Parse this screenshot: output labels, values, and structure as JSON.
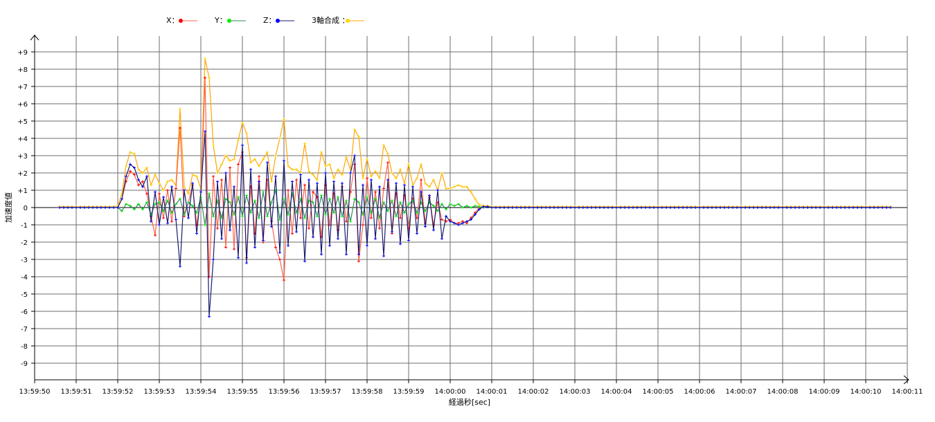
{
  "chart_data": {
    "type": "line",
    "title": "",
    "xlabel": "経過秒[sec]",
    "ylabel": "加速度値",
    "ylim": [
      -10,
      10
    ],
    "xlim_seconds": [
      0,
      21
    ],
    "x_ticks": [
      "13:59:50",
      "13:59:51",
      "13:59:52",
      "13:59:53",
      "13:59:54",
      "13:59:55",
      "13:59:56",
      "13:59:57",
      "13:59:58",
      "13:59:59",
      "14:00:00",
      "14:00:01",
      "14:00:02",
      "14:00:03",
      "14:00:04",
      "14:00:05",
      "14:00:06",
      "14:00:07",
      "14:00:08",
      "14:00:09",
      "14:00:10",
      "14:00:11"
    ],
    "y_ticks": [
      "+9",
      "+8",
      "+7",
      "+6",
      "+5",
      "+4",
      "+3",
      "+2",
      "+1",
      "0",
      "-1",
      "-2",
      "-3",
      "-4",
      "-5",
      "-6",
      "-7",
      "-8",
      "-9"
    ],
    "y_tick_values": [
      9,
      8,
      7,
      6,
      5,
      4,
      3,
      2,
      1,
      0,
      -1,
      -2,
      -3,
      -4,
      -5,
      -6,
      -7,
      -8,
      -9
    ],
    "grid": true,
    "legend_position": "top-center",
    "x_unit_note": "x values are seconds after 13:59:50",
    "active_start": 2.0,
    "active_step": 0.1,
    "quiet_ranges": [
      [
        0.6,
        2.0
      ],
      [
        11.0,
        20.6
      ]
    ],
    "series": [
      {
        "name": "X",
        "label": "X：",
        "line_color": "#ff6347",
        "marker_color": "#ff0000",
        "quiet_value": 0.0,
        "values": [
          0,
          0.5,
          1.5,
          2.1,
          1.9,
          1.3,
          1.5,
          0.8,
          -0.5,
          -1.6,
          0.8,
          -0.6,
          1.0,
          -0.8,
          1.1,
          4.6,
          -0.5,
          0.3,
          1.3,
          -1.0,
          0.6,
          7.5,
          -4.0,
          1.8,
          -1.2,
          1.6,
          -2.3,
          2.3,
          -2.4,
          2.5,
          3.2,
          -2.9,
          1.2,
          -1.5,
          1.8,
          -2.0,
          1.6,
          -0.8,
          -2.3,
          -3.0,
          -4.2,
          1.0,
          -1.5,
          1.6,
          -0.6,
          1.3,
          -1.2,
          0.9,
          0.6,
          -1.7,
          1.3,
          -1.0,
          0.8,
          -1.3,
          1.2,
          -0.8,
          0.9,
          2.5,
          -3.1,
          -1.0,
          1.7,
          -0.6,
          0.9,
          -1.2,
          1.1,
          2.6,
          -1.5,
          0.8,
          -0.6,
          0.7,
          -1.2,
          0.5,
          -0.6,
          1.6,
          -0.9,
          0.6,
          -1.0,
          0.3,
          -0.7,
          -0.8,
          -0.7,
          -0.9,
          -0.9,
          -0.8,
          -0.9,
          -0.6,
          -0.3,
          0.0,
          0.05,
          0.05,
          0.0
        ]
      },
      {
        "name": "Y",
        "label": "Y：",
        "line_color": "#2e8b57",
        "marker_color": "#00ee00",
        "quiet_value": 0.0,
        "values": [
          0,
          -0.2,
          0.2,
          0.1,
          -0.1,
          0.2,
          -0.1,
          0.3,
          -0.4,
          0.2,
          0.3,
          -0.2,
          0.4,
          -0.3,
          0.2,
          0.5,
          -0.4,
          0.3,
          0.1,
          -0.3,
          0.6,
          -1.0,
          0.8,
          -0.5,
          0.4,
          -0.6,
          0.5,
          0.3,
          -0.4,
          0.6,
          -0.5,
          0.7,
          -0.3,
          0.4,
          -0.6,
          0.9,
          -0.5,
          0.3,
          1.0,
          -0.7,
          0.5,
          -0.4,
          0.8,
          -0.3,
          0.5,
          -0.6,
          0.4,
          0.3,
          -0.5,
          0.7,
          -0.4,
          0.5,
          -0.3,
          0.6,
          -0.5,
          0.4,
          -0.8,
          0.5,
          0.3,
          -0.4,
          0.6,
          -0.3,
          0.5,
          -0.6,
          0.3,
          -0.2,
          0.4,
          -0.5,
          0.3,
          -0.3,
          0.2,
          0.4,
          -0.3,
          0.3,
          -0.2,
          0.3,
          0.1,
          -0.2,
          0.2,
          -0.1,
          0.2,
          0.1,
          0.2,
          0.0,
          0.1,
          0.0,
          0.1,
          0.05,
          0.0,
          0.05,
          0.0
        ]
      },
      {
        "name": "Z",
        "label": "Z：",
        "line_color": "#191970",
        "marker_color": "#0000ff",
        "quiet_value": 0.0,
        "values": [
          0,
          0.5,
          1.8,
          2.5,
          2.3,
          1.6,
          1.2,
          1.8,
          -0.8,
          0.9,
          -1.0,
          0.6,
          -0.9,
          1.2,
          -0.7,
          -3.4,
          1.0,
          -0.6,
          1.4,
          -1.5,
          0.9,
          4.4,
          -6.3,
          -3.0,
          1.5,
          -1.8,
          2.0,
          -1.3,
          1.2,
          -2.9,
          3.6,
          -3.2,
          2.2,
          -2.3,
          1.5,
          -1.9,
          2.6,
          -1.1,
          1.8,
          -2.6,
          2.7,
          -2.2,
          1.5,
          -1.4,
          1.9,
          -3.1,
          1.6,
          -1.7,
          1.4,
          -2.7,
          2.0,
          -2.2,
          1.5,
          -1.8,
          1.4,
          -2.7,
          2.0,
          3.0,
          -2.7,
          1.3,
          -2.2,
          1.6,
          -1.8,
          1.2,
          -2.8,
          1.6,
          -1.4,
          1.4,
          -2.1,
          1.3,
          -1.9,
          1.2,
          -1.5,
          0.9,
          -1.1,
          0.7,
          -1.3,
          1.0,
          -1.8,
          -0.5,
          -0.8,
          -0.9,
          -1.0,
          -0.9,
          -0.8,
          -0.7,
          -0.4,
          -0.1,
          0.05,
          0.05,
          0.0
        ]
      },
      {
        "name": "3軸合成",
        "label": "3軸合成 ：",
        "line_color": "#ffa500",
        "marker_color": "#ffd700",
        "quiet_value": 0.05,
        "values": [
          0.1,
          0.8,
          2.4,
          3.2,
          3.1,
          2.2,
          2.0,
          2.3,
          1.3,
          1.9,
          1.4,
          1.0,
          1.5,
          1.6,
          1.3,
          5.7,
          1.2,
          0.8,
          1.9,
          1.8,
          1.1,
          8.6,
          7.5,
          3.6,
          2.0,
          2.5,
          3.0,
          2.7,
          2.8,
          3.9,
          4.9,
          4.3,
          2.6,
          2.8,
          2.4,
          2.8,
          3.2,
          1.5,
          3.0,
          4.0,
          5.1,
          2.4,
          2.2,
          2.2,
          2.0,
          3.7,
          2.1,
          1.9,
          1.6,
          3.2,
          2.4,
          2.5,
          1.7,
          2.2,
          1.9,
          2.9,
          2.2,
          4.5,
          4.1,
          1.7,
          2.8,
          1.8,
          2.1,
          1.7,
          3.6,
          3.1,
          2.0,
          1.7,
          2.2,
          1.4,
          2.5,
          1.3,
          1.7,
          2.5,
          1.4,
          1.2,
          1.6,
          1.0,
          2.0,
          1.1,
          1.1,
          1.2,
          1.3,
          1.2,
          1.2,
          0.9,
          0.5,
          0.15,
          0.1,
          0.1,
          0.05
        ]
      }
    ]
  }
}
